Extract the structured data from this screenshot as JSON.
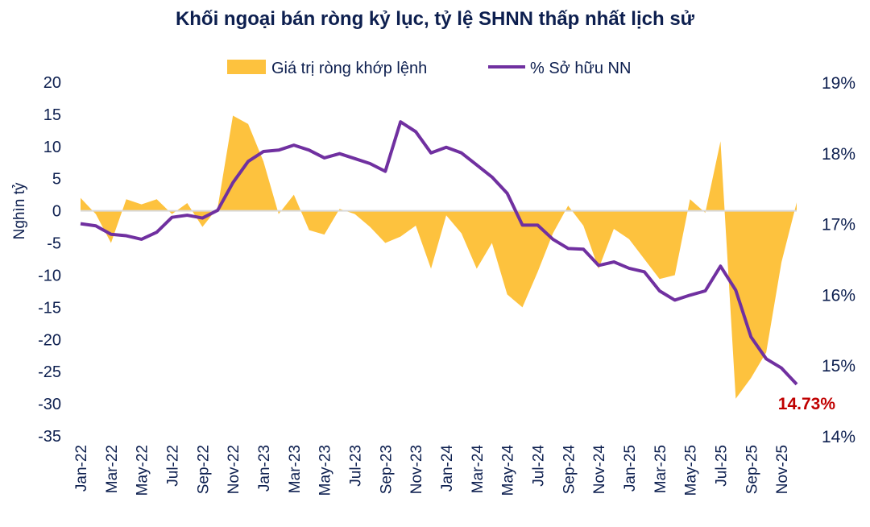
{
  "chart_data": {
    "type": "area+line",
    "title": "Khối ngoại bán ròng kỷ lục, tỷ lệ SHNN thấp nhất lịch sử",
    "ylabel": "Nghìn tỷ",
    "ylabel_right": "",
    "ylim": [
      -35,
      20
    ],
    "ylim_right": [
      14,
      19
    ],
    "yticks": [
      "20",
      "15",
      "10",
      "5",
      "0",
      "-5",
      "-10",
      "-15",
      "-20",
      "-25",
      "-30",
      "-35"
    ],
    "yticks_right": [
      "19%",
      "18%",
      "17%",
      "16%",
      "15%",
      "14%"
    ],
    "x": [
      "Jan-22",
      "Feb-22",
      "Mar-22",
      "Apr-22",
      "May-22",
      "Jun-22",
      "Jul-22",
      "Aug-22",
      "Sep-22",
      "Oct-22",
      "Nov-22",
      "Dec-22",
      "Jan-23",
      "Feb-23",
      "Mar-23",
      "Apr-23",
      "May-23",
      "Jun-23",
      "Jul-23",
      "Aug-23",
      "Sep-23",
      "Oct-23",
      "Nov-23",
      "Dec-23",
      "Jan-24",
      "Feb-24",
      "Mar-24",
      "Apr-24",
      "May-24",
      "Jun-24",
      "Jul-24",
      "Aug-24",
      "Sep-24",
      "Oct-24",
      "Nov-24",
      "Dec-24",
      "Jan-25",
      "Feb-25",
      "Mar-25",
      "Apr-25",
      "May-25",
      "Jun-25",
      "Jul-25",
      "Aug-25",
      "Sep-25",
      "Oct-25",
      "Nov-25",
      "Dec-25"
    ],
    "xtick_labels": [
      "Jan-22",
      "Mar-22",
      "May-22",
      "Jul-22",
      "Sep-22",
      "Nov-22",
      "Jan-23",
      "Mar-23",
      "May-23",
      "Jul-23",
      "Sep-23",
      "Nov-23",
      "Jan-24",
      "Mar-24",
      "May-24",
      "Jul-24",
      "Sep-24",
      "Nov-24",
      "Jan-25",
      "Mar-25",
      "May-25",
      "Jul-25",
      "Sep-25",
      "Nov-25"
    ],
    "grid": false,
    "legend_position": "top",
    "series": [
      {
        "name": "Giá trị ròng khớp lệnh",
        "type": "area",
        "axis": "left",
        "color": "#fdc23e",
        "values": [
          2,
          -0.5,
          -5,
          1.8,
          1,
          1.8,
          -0.5,
          1.2,
          -2.5,
          0.5,
          14.8,
          13.5,
          7.7,
          -0.5,
          2.5,
          -3,
          -3.7,
          0.3,
          -0.5,
          -2.5,
          -5,
          -4,
          -2.3,
          -9,
          -0.7,
          -3.5,
          -9,
          -5,
          -13,
          -15,
          -9.5,
          -3.5,
          0.8,
          -2.3,
          -9,
          -2.8,
          -4.4,
          -7.5,
          -10.6,
          -10,
          1.8,
          -0.3,
          10.8,
          -29.2,
          -26,
          -22,
          -8,
          1.3
        ]
      },
      {
        "name": "% Sở hữu NN",
        "type": "line",
        "axis": "right",
        "color": "#7030a0",
        "values": [
          17.0,
          16.97,
          16.85,
          16.83,
          16.78,
          16.88,
          17.09,
          17.12,
          17.08,
          17.19,
          17.58,
          17.88,
          18.02,
          18.04,
          18.11,
          18.04,
          17.93,
          17.99,
          17.92,
          17.85,
          17.74,
          18.44,
          18.3,
          18.0,
          18.08,
          18.0,
          17.83,
          17.66,
          17.43,
          16.98,
          16.98,
          16.78,
          16.65,
          16.64,
          16.41,
          16.46,
          16.37,
          16.32,
          16.05,
          15.92,
          15.99,
          16.05,
          16.4,
          16.06,
          15.4,
          15.09,
          14.96,
          14.73
        ]
      }
    ],
    "annotations": [
      {
        "text": "14.73%",
        "color": "#c00000"
      }
    ]
  }
}
